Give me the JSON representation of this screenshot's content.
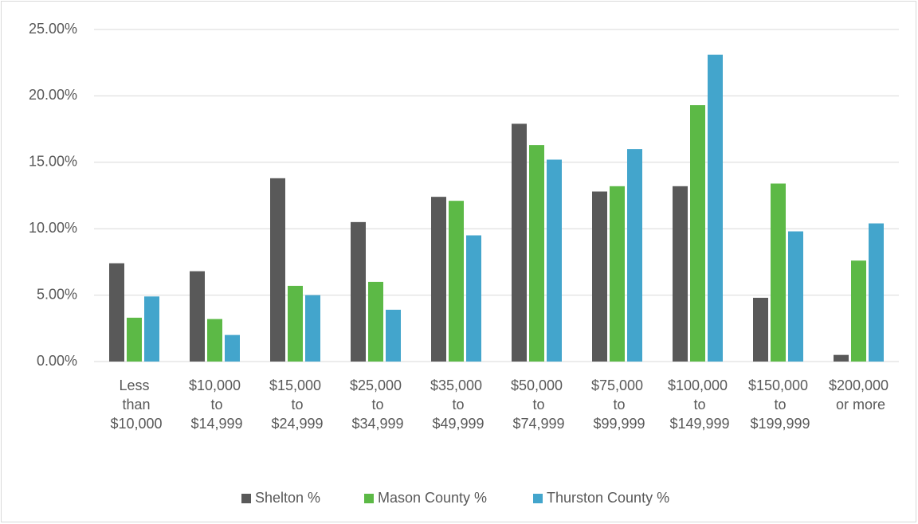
{
  "chart_data": {
    "type": "bar",
    "categories": [
      "Less than $10,000",
      "$10,000 to $14,999",
      "$15,000 to $24,999",
      "$25,000 to $34,999",
      "$35,000 to $49,999",
      "$50,000 to $74,999",
      "$75,000 to $99,999",
      "$100,000 to $149,999",
      "$150,000 to $199,999",
      "$200,000 or more"
    ],
    "series": [
      {
        "name": "Shelton %",
        "color": "#595959",
        "values": [
          7.4,
          6.8,
          13.8,
          10.5,
          12.4,
          17.9,
          12.8,
          13.2,
          4.8,
          0.5
        ]
      },
      {
        "name": "Mason County %",
        "color": "#5cb946",
        "values": [
          3.3,
          3.2,
          5.7,
          6.0,
          12.1,
          16.3,
          13.2,
          19.3,
          13.4,
          7.6
        ]
      },
      {
        "name": "Thurston County %",
        "color": "#43a5cc",
        "values": [
          4.9,
          2.0,
          5.0,
          3.9,
          9.5,
          15.2,
          16.0,
          23.1,
          9.8,
          10.4
        ]
      }
    ],
    "ylim": [
      0,
      25
    ],
    "yticks": [
      {
        "value": 0,
        "label": "0.00%"
      },
      {
        "value": 5,
        "label": "5.00%"
      },
      {
        "value": 10,
        "label": "10.00%"
      },
      {
        "value": 15,
        "label": "15.00%"
      },
      {
        "value": 20,
        "label": "20.00%"
      },
      {
        "value": 25,
        "label": "25.00%"
      }
    ],
    "grid": true,
    "legend": "bottom"
  }
}
